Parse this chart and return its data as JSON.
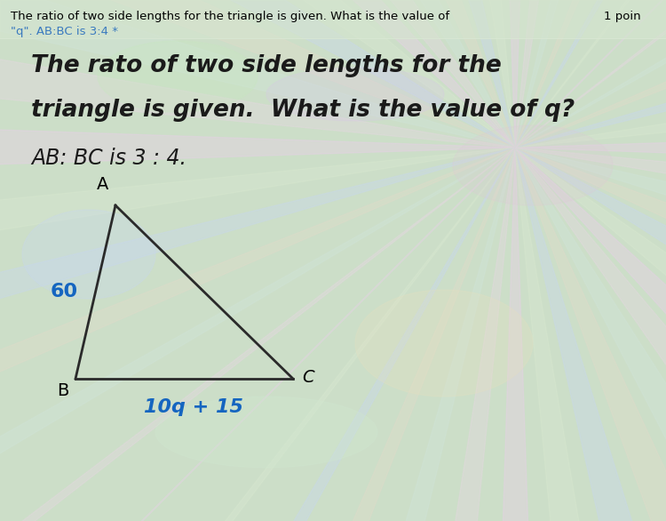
{
  "header_text": "The ratio of two side lengths for the triangle is given. What is the value of",
  "header_points": "1 poin",
  "header_sub": "\"q\". AB:BC is 3:4 *",
  "title_line1": "The rato of two side lengths for the",
  "title_line2": "triangle is given.  What is the value of q?",
  "ratio_text": "AB: BC is 3 : 4.",
  "vertex_A_fig": [
    0.115,
    0.435
  ],
  "vertex_B_fig": [
    0.075,
    0.215
  ],
  "vertex_C_fig": [
    0.415,
    0.215
  ],
  "label_A": "A",
  "label_B": "B",
  "label_C": "C",
  "label_AB": "60",
  "label_BC": "10q + 15",
  "label_AB_color": "#1565C0",
  "label_BC_color": "#1565C0",
  "triangle_color": "#2a2a2a",
  "triangle_linewidth": 2.0,
  "bg_color_top": "#e8d8e8",
  "bg_color_mid": "#d0e8c8",
  "bg_color_bot": "#c8d8e8",
  "header_color": "#000000",
  "title_color": "#1a1a1a",
  "ratio_color": "#1a1a1a",
  "header_fontsize": 9.5,
  "title_fontsize": 19,
  "ratio_fontsize": 17,
  "label_fontsize": 13,
  "side_label_fontsize": 15
}
